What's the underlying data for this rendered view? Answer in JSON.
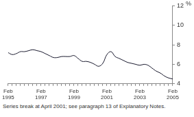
{
  "chart_data": {
    "type": "line",
    "ylabel": "%",
    "footnote": "Series break at April 2001; see paragraph 13 of Explanatory Notes.",
    "categories": [
      "Feb 1995",
      null,
      null,
      null,
      null,
      null,
      null,
      null,
      "Feb 1997",
      null,
      null,
      null,
      null,
      null,
      null,
      null,
      "Feb 1999",
      null,
      null,
      null,
      null,
      null,
      null,
      null,
      "Feb 2001",
      null,
      null,
      null,
      null,
      null,
      null,
      null,
      "Feb 2003",
      null,
      null,
      null,
      null,
      null,
      null,
      null,
      "Feb 2005"
    ],
    "values": [
      7.2,
      7.0,
      7.1,
      7.3,
      7.3,
      7.4,
      7.5,
      7.4,
      7.3,
      7.1,
      6.9,
      6.7,
      6.7,
      6.8,
      6.8,
      6.8,
      6.9,
      6.6,
      6.3,
      6.3,
      6.2,
      6.0,
      5.8,
      6.1,
      7.0,
      7.3,
      6.8,
      6.6,
      6.4,
      6.2,
      6.1,
      6.0,
      5.9,
      6.0,
      5.9,
      5.6,
      5.3,
      5.1,
      4.8,
      4.6,
      4.5
    ],
    "color": "#1a1a2e",
    "ylim": [
      4,
      12
    ],
    "yticks": [
      4,
      6,
      8,
      10,
      12
    ],
    "grid": false
  }
}
